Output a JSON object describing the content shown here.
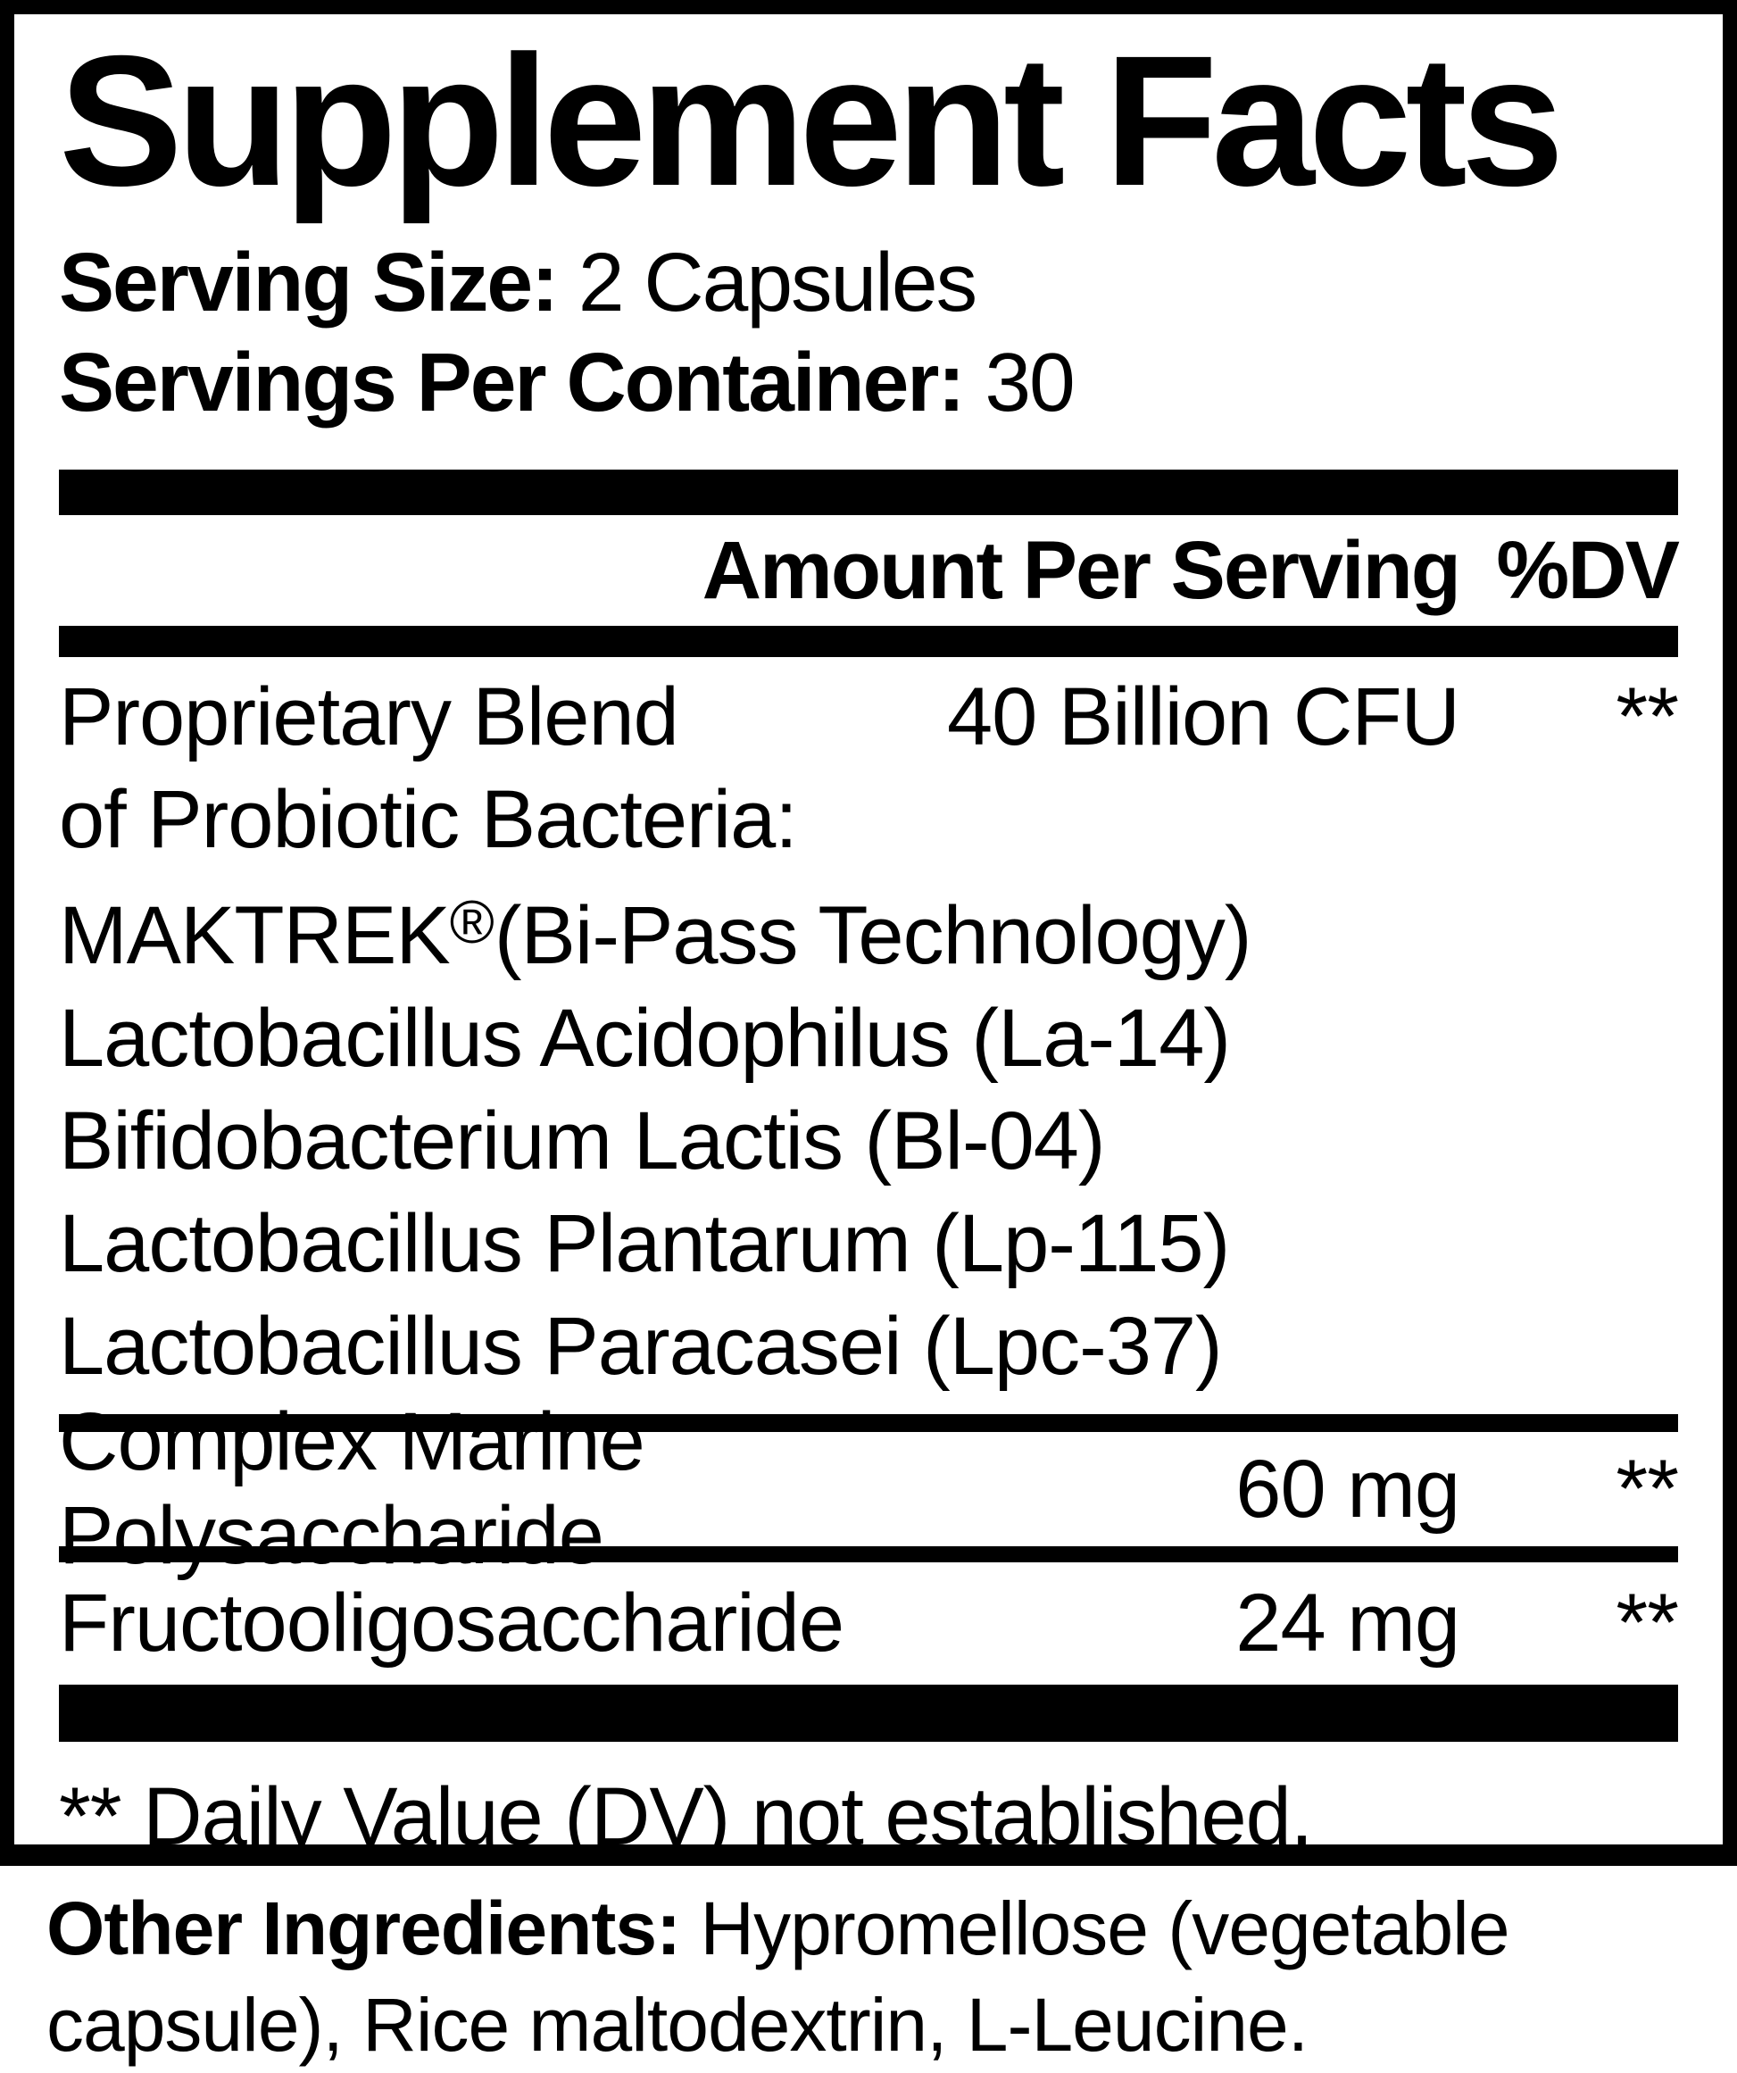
{
  "colors": {
    "text": "#000000",
    "background": "#ffffff",
    "bars": "#000000"
  },
  "label": {
    "title": "Supplement Facts",
    "serving_size": {
      "label": "Serving Size:",
      "value": "2 Capsules"
    },
    "servings_per_container": {
      "label": "Servings Per Container:",
      "value": "30"
    },
    "header": {
      "amount": "Amount Per Serving",
      "dv": "%DV"
    },
    "blend": {
      "name": "Proprietary Blend",
      "amount": "40 Billion CFU",
      "dv": "**",
      "line2": "of Probiotic Bacteria:",
      "maktrek_name": "MAKTREK",
      "maktrek_reg": "®",
      "maktrek_rest": "(Bi-Pass Technology)",
      "strain1": "Lactobacillus Acidophilus (La-14)",
      "strain2": "Bifidobacterium Lactis (Bl-04)",
      "strain3": "Lactobacillus Plantarum (Lp-115)",
      "strain4": "Lactobacillus Paracasei (Lpc-37)"
    },
    "rows": [
      {
        "name": "Complex Marine Polysaccharide",
        "amount": "60 mg",
        "dv": "**"
      },
      {
        "name": "Fructooligosaccharide",
        "amount": "24 mg",
        "dv": "**"
      }
    ],
    "footnote": "** Daily Value (DV) not established.",
    "other_ingredients": {
      "label": "Other Ingredients:",
      "line1_rest": "Hypromellose (vegetable",
      "line2": "capsule), Rice maltodextrin, L-Leucine."
    }
  }
}
